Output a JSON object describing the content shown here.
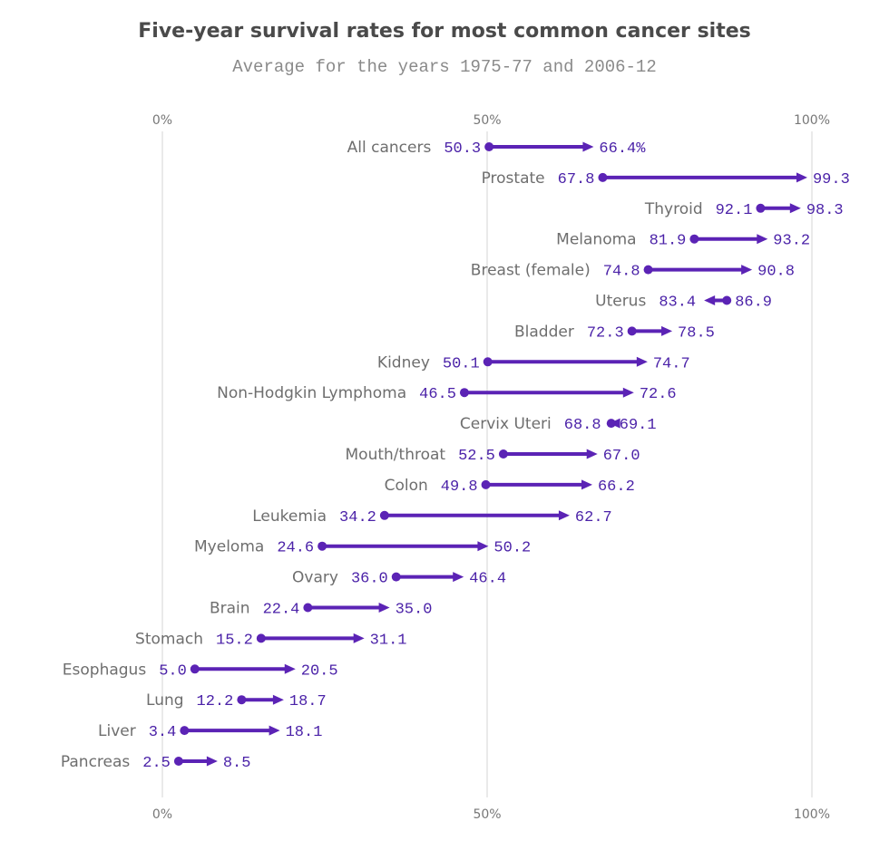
{
  "title": "Five-year survival rates for most common cancer sites",
  "subtitle": "Average for the years 1975-77 and 2006-12",
  "chart_data": {
    "type": "arrow-dot",
    "title": "Five-year survival rates for most common cancer sites",
    "subtitle": "Average for the years 1975-77 and 2006-12",
    "xlim": [
      0,
      100
    ],
    "ticks": [
      "0%",
      "50%",
      "100%"
    ],
    "tick_values": [
      0,
      50,
      100
    ],
    "grid": true,
    "color": "#5b23b5",
    "series": [
      {
        "name": "All cancers",
        "start": 50.3,
        "end": 66.4,
        "end_label": "66.4%"
      },
      {
        "name": "Prostate",
        "start": 67.8,
        "end": 99.3
      },
      {
        "name": "Thyroid",
        "start": 92.1,
        "end": 98.3
      },
      {
        "name": "Melanoma",
        "start": 81.9,
        "end": 93.2
      },
      {
        "name": "Breast (female)",
        "start": 74.8,
        "end": 90.8
      },
      {
        "name": "Uterus",
        "start": 86.9,
        "end": 83.4
      },
      {
        "name": "Bladder",
        "start": 72.3,
        "end": 78.5
      },
      {
        "name": "Kidney",
        "start": 50.1,
        "end": 74.7
      },
      {
        "name": "Non-Hodgkin Lymphoma",
        "start": 46.5,
        "end": 72.6
      },
      {
        "name": "Cervix Uteri",
        "start": 69.1,
        "end": 68.8
      },
      {
        "name": "Mouth/throat",
        "start": 52.5,
        "end": 67.0
      },
      {
        "name": "Colon",
        "start": 49.8,
        "end": 66.2
      },
      {
        "name": "Leukemia",
        "start": 34.2,
        "end": 62.7
      },
      {
        "name": "Myeloma",
        "start": 24.6,
        "end": 50.2
      },
      {
        "name": "Ovary",
        "start": 36.0,
        "end": 46.4
      },
      {
        "name": "Brain",
        "start": 22.4,
        "end": 35.0
      },
      {
        "name": "Stomach",
        "start": 15.2,
        "end": 31.1
      },
      {
        "name": "Esophagus",
        "start": 5.0,
        "end": 20.5
      },
      {
        "name": "Lung",
        "start": 12.2,
        "end": 18.7
      },
      {
        "name": "Liver",
        "start": 3.4,
        "end": 18.1
      },
      {
        "name": "Pancreas",
        "start": 2.5,
        "end": 8.5
      }
    ]
  }
}
